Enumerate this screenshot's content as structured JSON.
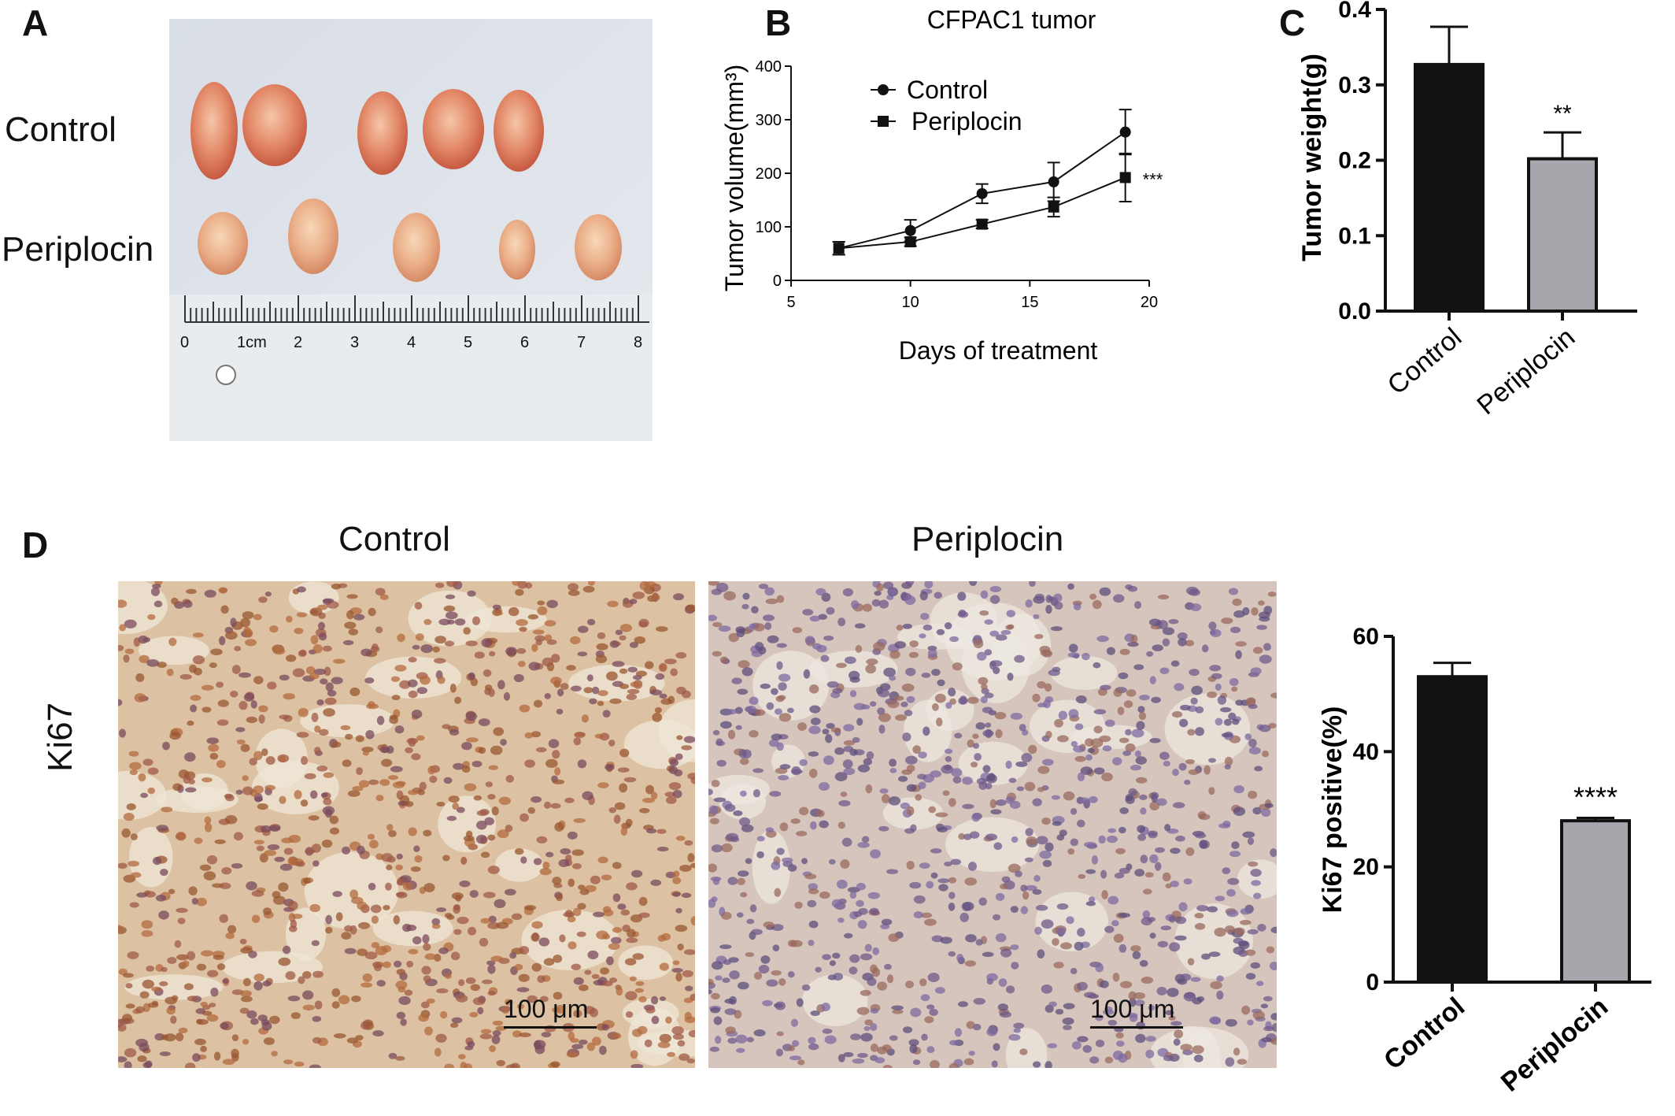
{
  "panels": {
    "a": "A",
    "b": "B",
    "c": "C",
    "d": "D"
  },
  "panel_a": {
    "row_labels": [
      "Control",
      "Periplocin"
    ],
    "ruler_labels": [
      "0",
      "1cm",
      "2",
      "3",
      "4",
      "5",
      "6",
      "7",
      "8"
    ]
  },
  "panel_d": {
    "col_labels": [
      "Control",
      "Periplocin"
    ],
    "row_label": "Ki67",
    "scale_bar_label": "100 μm"
  },
  "chart_data": [
    {
      "id": "B",
      "type": "line",
      "title": "CFPAC1 tumor",
      "xlabel": "Days of treatment",
      "ylabel": "Tumor volume(mm³)",
      "xlim": [
        5,
        20
      ],
      "ylim": [
        0,
        400
      ],
      "xticks": [
        5,
        10,
        15,
        20
      ],
      "yticks": [
        0,
        100,
        200,
        300,
        400
      ],
      "legend_position": "top-left",
      "x": [
        7,
        10,
        13,
        16,
        19
      ],
      "series": [
        {
          "name": "Control",
          "marker": "circle",
          "values": [
            60,
            93,
            162,
            184,
            277
          ],
          "errors": [
            12,
            20,
            18,
            36,
            42
          ]
        },
        {
          "name": "Periplocin",
          "marker": "square",
          "values": [
            60,
            72,
            105,
            137,
            192
          ],
          "errors": [
            12,
            8,
            8,
            18,
            45
          ]
        }
      ],
      "annotation": "***"
    },
    {
      "id": "C",
      "type": "bar",
      "ylabel": "Tumor weight(g)",
      "ylim": [
        0,
        0.4
      ],
      "yticks": [
        "0.0",
        "0.1",
        "0.2",
        "0.3",
        "0.4"
      ],
      "categories": [
        "Control",
        "Periplocin"
      ],
      "values": [
        0.327,
        0.202
      ],
      "errors": [
        0.05,
        0.035
      ],
      "colors": [
        "#111111",
        "#a6a7ac"
      ],
      "annotations": [
        "",
        "**"
      ]
    },
    {
      "id": "D",
      "type": "bar",
      "ylabel": "Ki67 positive(%)",
      "ylim": [
        0,
        60
      ],
      "yticks": [
        "0",
        "20",
        "40",
        "60"
      ],
      "categories": [
        "Control",
        "Periplocin"
      ],
      "values": [
        53,
        28
      ],
      "errors": [
        2.4,
        0.5
      ],
      "colors": [
        "#111111",
        "#a6a7ac"
      ],
      "annotations": [
        "",
        "****"
      ]
    }
  ]
}
